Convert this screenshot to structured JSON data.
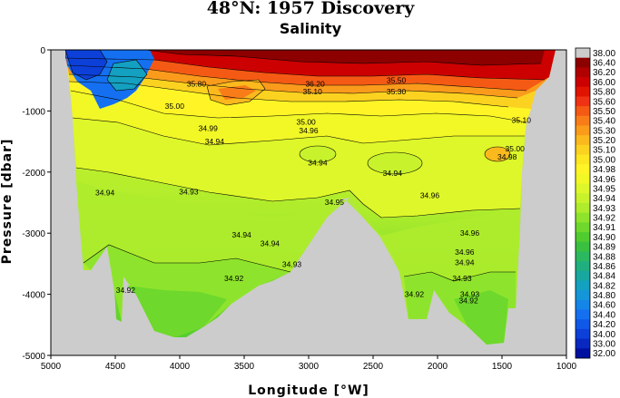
{
  "chart_data": {
    "type": "heatmap",
    "title": "48°N: 1957 Discovery",
    "subtitle": "Salinity",
    "xlabel": "Longitude [°W]",
    "ylabel": "Pressure [dbar]",
    "xlim": [
      5000,
      1000
    ],
    "ylim": [
      0,
      -5000
    ],
    "x_ticks": [
      "5000",
      "4500",
      "4000",
      "3500",
      "3000",
      "2500",
      "2000",
      "1500",
      "1000"
    ],
    "y_ticks": [
      "0",
      "-1000",
      "-2000",
      "-3000",
      "-4000",
      "-5000"
    ],
    "colorbar_levels": [
      "38.00",
      "36.40",
      "36.20",
      "36.00",
      "35.80",
      "35.60",
      "35.50",
      "35.40",
      "35.30",
      "35.20",
      "35.10",
      "35.00",
      "34.98",
      "34.96",
      "34.95",
      "34.94",
      "34.93",
      "34.92",
      "34.91",
      "34.90",
      "34.89",
      "34.88",
      "34.86",
      "34.84",
      "34.82",
      "34.80",
      "34.60",
      "34.40",
      "34.20",
      "34.00",
      "33.00",
      "32.00"
    ],
    "colorbar_colors": [
      "#cccccc",
      "#8c0000",
      "#b00000",
      "#cc0000",
      "#e01400",
      "#f03214",
      "#f55a14",
      "#f87d18",
      "#fa9b1c",
      "#fbb91e",
      "#fcd220",
      "#fde622",
      "#fff526",
      "#f2f726",
      "#def72a",
      "#c8f22c",
      "#aeec2c",
      "#8ee42c",
      "#6ed82c",
      "#50cc30",
      "#3ac040",
      "#2cb860",
      "#20b080",
      "#18a8a0",
      "#14a0c0",
      "#1496d8",
      "#1486e8",
      "#1470f0",
      "#1058e8",
      "#0c40d8",
      "#0828c0",
      "#0010a0"
    ],
    "contour_labels": [
      {
        "text": "35.80",
        "x": 3870,
        "y": -560
      },
      {
        "text": "36.20",
        "x": 2950,
        "y": -560
      },
      {
        "text": "35.10",
        "x": 2970,
        "y": -680
      },
      {
        "text": "35.50",
        "x": 2320,
        "y": -500
      },
      {
        "text": "35.30",
        "x": 2320,
        "y": -680
      },
      {
        "text": "35.00",
        "x": 4040,
        "y": -920
      },
      {
        "text": "34.99",
        "x": 3780,
        "y": -1280
      },
      {
        "text": "35.00",
        "x": 3020,
        "y": -1180
      },
      {
        "text": "34.96",
        "x": 3000,
        "y": -1320
      },
      {
        "text": "34.94",
        "x": 3730,
        "y": -1500
      },
      {
        "text": "34.94",
        "x": 2930,
        "y": -1850
      },
      {
        "text": "34.94",
        "x": 2350,
        "y": -2020
      },
      {
        "text": "34.94",
        "x": 4580,
        "y": -2340
      },
      {
        "text": "34.93",
        "x": 3930,
        "y": -2320
      },
      {
        "text": "34.95",
        "x": 2800,
        "y": -2490
      },
      {
        "text": "34.96",
        "x": 2060,
        "y": -2380
      },
      {
        "text": "34.94",
        "x": 3520,
        "y": -3030
      },
      {
        "text": "34.94",
        "x": 3300,
        "y": -3170
      },
      {
        "text": "34.93",
        "x": 3130,
        "y": -3510
      },
      {
        "text": "34.92",
        "x": 3580,
        "y": -3740
      },
      {
        "text": "34.92",
        "x": 4420,
        "y": -3930
      },
      {
        "text": "34.96",
        "x": 1750,
        "y": -3000
      },
      {
        "text": "34.96",
        "x": 1790,
        "y": -3310
      },
      {
        "text": "34.94",
        "x": 1790,
        "y": -3480
      },
      {
        "text": "34.93",
        "x": 1810,
        "y": -3740
      },
      {
        "text": "34.92",
        "x": 2180,
        "y": -4000
      },
      {
        "text": "34.93",
        "x": 1750,
        "y": -4000
      },
      {
        "text": "34.92",
        "x": 1760,
        "y": -4100
      },
      {
        "text": "35.10",
        "x": 1350,
        "y": -1150
      },
      {
        "text": "35.00",
        "x": 1400,
        "y": -1620
      },
      {
        "text": "34.98",
        "x": 1460,
        "y": -1750
      }
    ]
  }
}
